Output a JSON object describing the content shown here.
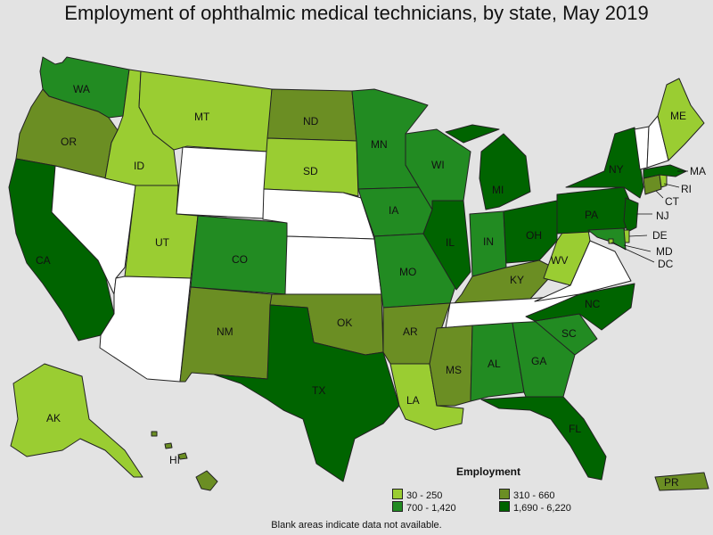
{
  "title": "Employment of ophthalmic medical technicians, by state, May 2019",
  "legend": {
    "title": "Employment",
    "items": [
      {
        "label": "30 - 250",
        "color": "#9acd32"
      },
      {
        "label": "310 - 660",
        "color": "#6b8e23"
      },
      {
        "label": "700 - 1,420",
        "color": "#228b22"
      },
      {
        "label": "1,690 - 6,220",
        "color": "#006400"
      }
    ]
  },
  "colors": {
    "no_data": "#ffffff",
    "background": "#e3e3e3"
  },
  "footnote": "Blank areas indicate data not available.",
  "states": [
    {
      "abbr": "WA",
      "range": "700 - 1,420"
    },
    {
      "abbr": "OR",
      "range": "310 - 660"
    },
    {
      "abbr": "CA",
      "range": "1,690 - 6,220"
    },
    {
      "abbr": "NV",
      "range": null
    },
    {
      "abbr": "ID",
      "range": "30 - 250"
    },
    {
      "abbr": "MT",
      "range": "30 - 250"
    },
    {
      "abbr": "WY",
      "range": null
    },
    {
      "abbr": "UT",
      "range": "30 - 250"
    },
    {
      "abbr": "AZ",
      "range": null
    },
    {
      "abbr": "CO",
      "range": "700 - 1,420"
    },
    {
      "abbr": "NM",
      "range": "310 - 660"
    },
    {
      "abbr": "ND",
      "range": "310 - 660"
    },
    {
      "abbr": "SD",
      "range": "30 - 250"
    },
    {
      "abbr": "NE",
      "range": null
    },
    {
      "abbr": "KS",
      "range": null
    },
    {
      "abbr": "OK",
      "range": "310 - 660"
    },
    {
      "abbr": "TX",
      "range": "1,690 - 6,220"
    },
    {
      "abbr": "MN",
      "range": "700 - 1,420"
    },
    {
      "abbr": "IA",
      "range": "700 - 1,420"
    },
    {
      "abbr": "MO",
      "range": "700 - 1,420"
    },
    {
      "abbr": "AR",
      "range": "310 - 660"
    },
    {
      "abbr": "LA",
      "range": "30 - 250"
    },
    {
      "abbr": "WI",
      "range": "700 - 1,420"
    },
    {
      "abbr": "IL",
      "range": "1,690 - 6,220"
    },
    {
      "abbr": "MI",
      "range": "1,690 - 6,220"
    },
    {
      "abbr": "IN",
      "range": "700 - 1,420"
    },
    {
      "abbr": "OH",
      "range": "1,690 - 6,220"
    },
    {
      "abbr": "KY",
      "range": "310 - 660"
    },
    {
      "abbr": "TN",
      "range": null
    },
    {
      "abbr": "MS",
      "range": "310 - 660"
    },
    {
      "abbr": "AL",
      "range": "700 - 1,420"
    },
    {
      "abbr": "GA",
      "range": "700 - 1,420"
    },
    {
      "abbr": "FL",
      "range": "1,690 - 6,220"
    },
    {
      "abbr": "SC",
      "range": "700 - 1,420"
    },
    {
      "abbr": "NC",
      "range": "1,690 - 6,220"
    },
    {
      "abbr": "VA",
      "range": null
    },
    {
      "abbr": "WV",
      "range": "30 - 250"
    },
    {
      "abbr": "PA",
      "range": "1,690 - 6,220"
    },
    {
      "abbr": "NY",
      "range": "1,690 - 6,220"
    },
    {
      "abbr": "NJ",
      "range": "1,690 - 6,220"
    },
    {
      "abbr": "DE",
      "range": "30 - 250"
    },
    {
      "abbr": "MD",
      "range": "700 - 1,420"
    },
    {
      "abbr": "DC",
      "range": "30 - 250"
    },
    {
      "abbr": "CT",
      "range": "310 - 660"
    },
    {
      "abbr": "RI",
      "range": "30 - 250"
    },
    {
      "abbr": "MA",
      "range": "1,690 - 6,220"
    },
    {
      "abbr": "VT",
      "range": null
    },
    {
      "abbr": "NH",
      "range": null
    },
    {
      "abbr": "ME",
      "range": "30 - 250"
    },
    {
      "abbr": "AK",
      "range": "30 - 250"
    },
    {
      "abbr": "HI",
      "range": "310 - 660"
    },
    {
      "abbr": "PR",
      "range": "310 - 660"
    }
  ]
}
